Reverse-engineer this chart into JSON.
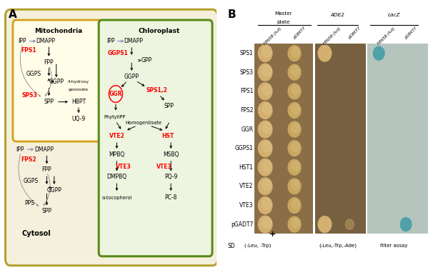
{
  "fig_width": 6.06,
  "fig_height": 3.85,
  "dpi": 100,
  "panel_A_label": "A",
  "panel_B_label": "B",
  "outer_box_color": "#b5a030",
  "mito_box_color": "#d4a017",
  "chloro_box_color": "#5a8a1a",
  "cytosol_label": "Cytosol",
  "mito_label": "Mitochondria",
  "chloro_label": "Chloroplast",
  "col_headers": [
    "FBN5B (full)",
    "pGBKT7",
    "FBN5B (full)",
    "pGBKT7",
    "FBN5B (full)",
    "pGBKT7"
  ],
  "row_labels": [
    "SPS1",
    "SPS3",
    "FPS1",
    "FPS2",
    "GGR",
    "GGPS1",
    "HST1",
    "VTE2",
    "VTE3",
    "pGADT7"
  ],
  "master_bg": "#8B7050",
  "ade2_bg": "#7a6040",
  "lacz_bg": "#b8c8c0",
  "colony_tan": "#D4B080",
  "colony_tan2": "#C8A870",
  "lacz_blue": "#50A0A8",
  "positive_marker": "+"
}
